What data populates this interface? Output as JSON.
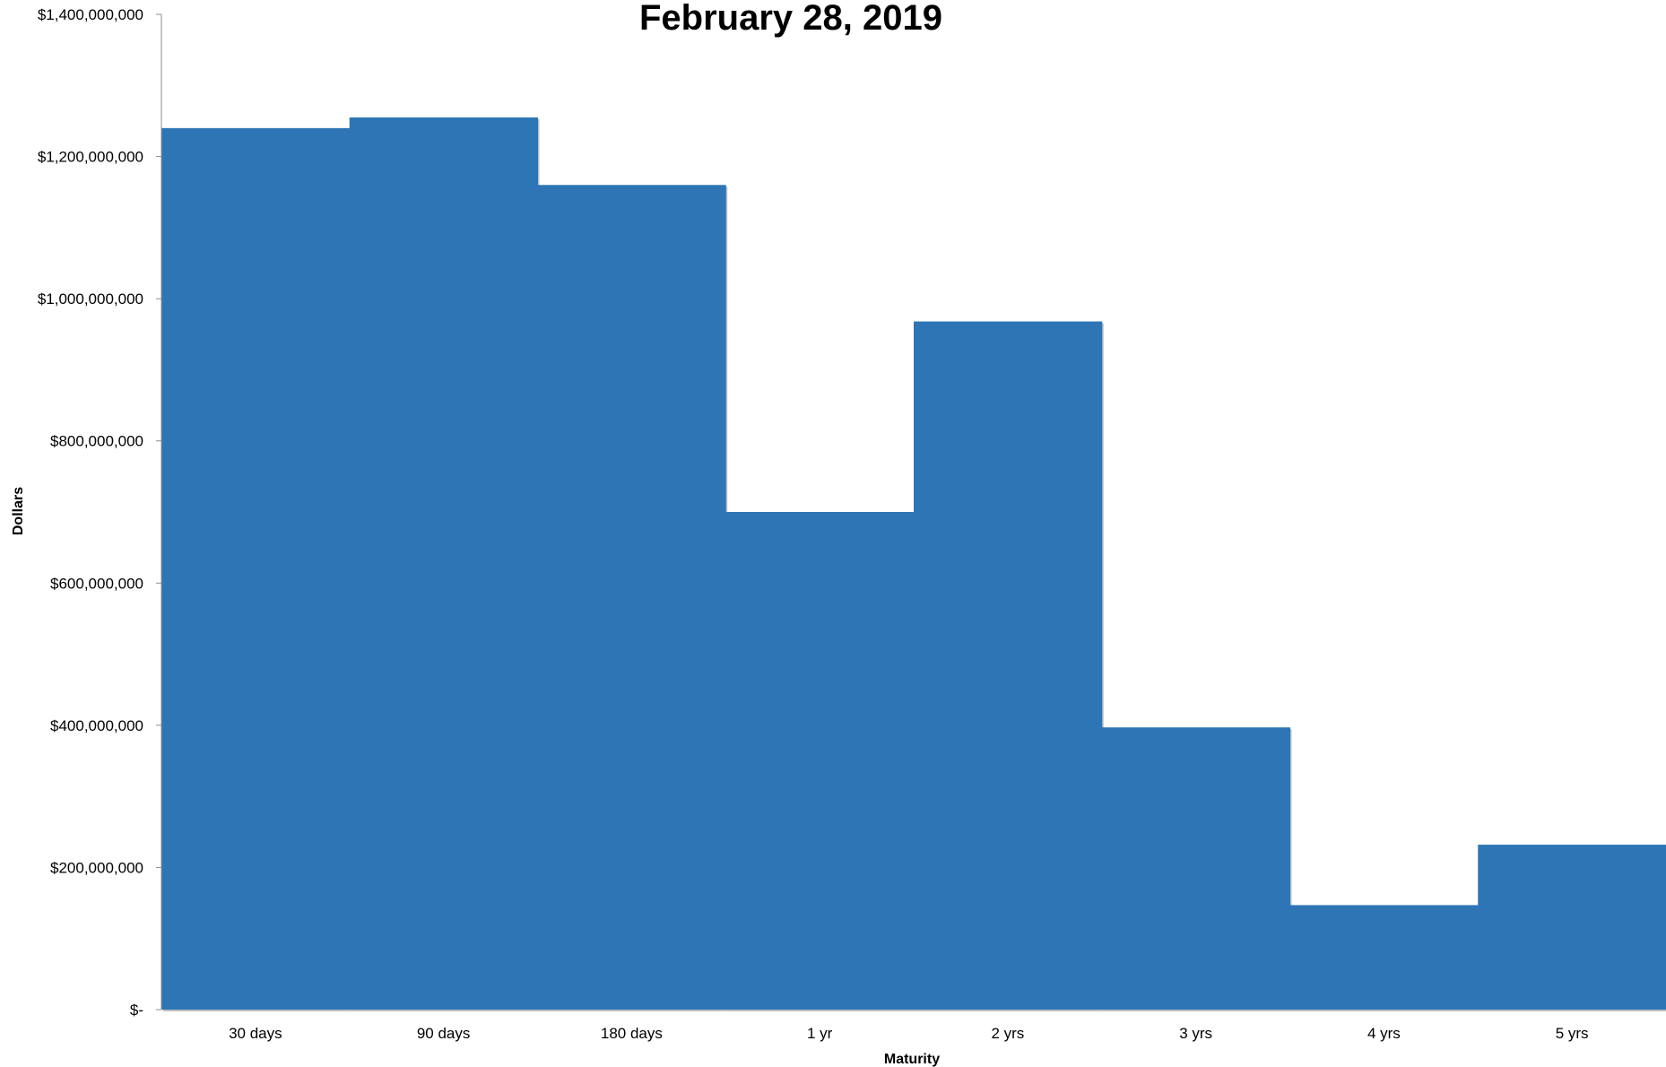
{
  "chart_data": {
    "type": "bar",
    "title": "February 28, 2019",
    "xlabel": "Maturity",
    "ylabel": "Dollars",
    "categories": [
      "30 days",
      "90 days",
      "180 days",
      "1 yr",
      "2 yrs",
      "3 yrs",
      "4 yrs",
      "5 yrs"
    ],
    "values": [
      1240000000,
      1255000000,
      1160000000,
      700000000,
      968000000,
      397000000,
      147000000,
      232000000
    ],
    "ylim": [
      0,
      1400000000
    ],
    "yticks": [
      0,
      200000000,
      400000000,
      600000000,
      800000000,
      1000000000,
      1200000000,
      1400000000
    ],
    "ytick_labels": [
      "$-",
      "$200,000,000",
      "$400,000,000",
      "$600,000,000",
      "$800,000,000",
      "$1,000,000,000",
      "$1,200,000,000",
      "$1,400,000,000"
    ],
    "grid": false,
    "legend": "none",
    "bar_gap": 0,
    "bar_color": "#2E75B6",
    "shadow_color": "#BFBFBF"
  }
}
